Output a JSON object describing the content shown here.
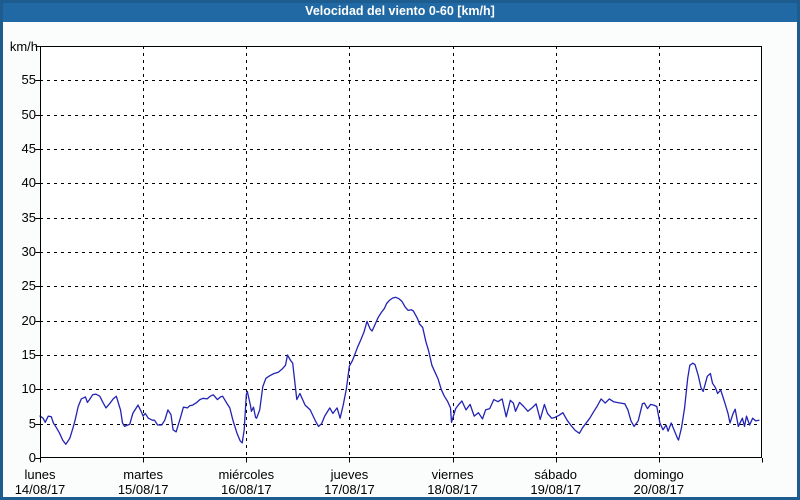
{
  "title": "Velocidad del viento 0-60 [km/h]",
  "colors": {
    "title_bar_bg": "#2069a4",
    "title_text": "#ffffff",
    "outer_border": "#1d5c8e",
    "page_bg": "#fbfcfc",
    "plot_bg": "#ffffff",
    "grid": "#000000",
    "line": "#2323b4",
    "text": "#000000"
  },
  "y_axis": {
    "unit_label": "km/h",
    "min": 0,
    "max": 60,
    "tick_step": 5,
    "tick_labels": [
      "0",
      "5",
      "10",
      "15",
      "20",
      "25",
      "30",
      "35",
      "40",
      "45",
      "50",
      "55"
    ]
  },
  "x_axis": {
    "days": [
      {
        "name": "lunes",
        "date": "14/08/17"
      },
      {
        "name": "martes",
        "date": "15/08/17"
      },
      {
        "name": "miércoles",
        "date": "16/08/17"
      },
      {
        "name": "jueves",
        "date": "17/08/17"
      },
      {
        "name": "viernes",
        "date": "18/08/17"
      },
      {
        "name": "sábado",
        "date": "19/08/17"
      },
      {
        "name": "domingo",
        "date": "20/08/17"
      }
    ]
  },
  "chart_data": {
    "type": "line",
    "title": "Velocidad del viento 0-60 [km/h]",
    "ylabel": "km/h",
    "ylim": [
      0,
      60
    ],
    "grid": true,
    "legend": false,
    "x_unit": "days since lunes 14/08/17 00:00 (0 to 7)",
    "x_tick_days": [
      "lunes 14/08/17",
      "martes 15/08/17",
      "miércoles 16/08/17",
      "jueves 17/08/17",
      "viernes 18/08/17",
      "sábado 19/08/17",
      "domingo 20/08/17"
    ],
    "series": [
      {
        "name": "Velocidad del viento",
        "color": "#2323b4",
        "points": [
          [
            0.0,
            6.1
          ],
          [
            0.03,
            5.8
          ],
          [
            0.05,
            5.2
          ],
          [
            0.08,
            6.1
          ],
          [
            0.11,
            6.0
          ],
          [
            0.13,
            5.1
          ],
          [
            0.16,
            4.4
          ],
          [
            0.19,
            3.6
          ],
          [
            0.22,
            2.6
          ],
          [
            0.25,
            2.0
          ],
          [
            0.29,
            2.9
          ],
          [
            0.32,
            4.4
          ],
          [
            0.34,
            5.5
          ],
          [
            0.37,
            7.5
          ],
          [
            0.4,
            8.6
          ],
          [
            0.44,
            8.9
          ],
          [
            0.46,
            8.1
          ],
          [
            0.48,
            8.5
          ],
          [
            0.51,
            9.2
          ],
          [
            0.54,
            9.3
          ],
          [
            0.58,
            9.0
          ],
          [
            0.61,
            8.1
          ],
          [
            0.64,
            7.3
          ],
          [
            0.68,
            8.0
          ],
          [
            0.71,
            8.6
          ],
          [
            0.74,
            9.0
          ],
          [
            0.78,
            7.0
          ],
          [
            0.8,
            5.1
          ],
          [
            0.82,
            4.6
          ],
          [
            0.85,
            4.8
          ],
          [
            0.87,
            4.9
          ],
          [
            0.9,
            6.5
          ],
          [
            0.95,
            7.7
          ],
          [
            0.98,
            6.8
          ],
          [
            1.0,
            6.1
          ],
          [
            1.02,
            6.5
          ],
          [
            1.05,
            5.8
          ],
          [
            1.09,
            5.5
          ],
          [
            1.11,
            5.5
          ],
          [
            1.14,
            4.8
          ],
          [
            1.18,
            4.8
          ],
          [
            1.21,
            5.5
          ],
          [
            1.24,
            7.0
          ],
          [
            1.27,
            6.3
          ],
          [
            1.29,
            4.1
          ],
          [
            1.32,
            3.8
          ],
          [
            1.36,
            5.8
          ],
          [
            1.39,
            7.4
          ],
          [
            1.43,
            7.3
          ],
          [
            1.45,
            7.6
          ],
          [
            1.48,
            7.7
          ],
          [
            1.52,
            8.1
          ],
          [
            1.55,
            8.5
          ],
          [
            1.58,
            8.7
          ],
          [
            1.62,
            8.6
          ],
          [
            1.65,
            9.0
          ],
          [
            1.68,
            9.2
          ],
          [
            1.72,
            8.5
          ],
          [
            1.75,
            8.9
          ],
          [
            1.77,
            9.0
          ],
          [
            1.81,
            8.0
          ],
          [
            1.84,
            7.3
          ],
          [
            1.87,
            5.5
          ],
          [
            1.91,
            3.6
          ],
          [
            1.94,
            2.5
          ],
          [
            1.96,
            2.2
          ],
          [
            1.98,
            4.1
          ],
          [
            2.0,
            9.2
          ],
          [
            2.01,
            9.7
          ],
          [
            2.04,
            7.7
          ],
          [
            2.05,
            6.8
          ],
          [
            2.07,
            7.4
          ],
          [
            2.09,
            5.9
          ],
          [
            2.1,
            5.8
          ],
          [
            2.13,
            7.0
          ],
          [
            2.16,
            10.4
          ],
          [
            2.19,
            11.6
          ],
          [
            2.23,
            12.0
          ],
          [
            2.27,
            12.3
          ],
          [
            2.31,
            12.5
          ],
          [
            2.35,
            13.0
          ],
          [
            2.38,
            13.5
          ],
          [
            2.4,
            15.0
          ],
          [
            2.43,
            14.2
          ],
          [
            2.45,
            13.8
          ],
          [
            2.49,
            8.5
          ],
          [
            2.52,
            9.4
          ],
          [
            2.57,
            7.7
          ],
          [
            2.62,
            7.0
          ],
          [
            2.67,
            5.4
          ],
          [
            2.7,
            4.6
          ],
          [
            2.73,
            5.0
          ],
          [
            2.76,
            6.1
          ],
          [
            2.81,
            7.3
          ],
          [
            2.84,
            6.5
          ],
          [
            2.88,
            7.3
          ],
          [
            2.91,
            5.8
          ],
          [
            2.94,
            7.7
          ],
          [
            2.97,
            10.0
          ],
          [
            3.0,
            13.4
          ],
          [
            3.03,
            14.2
          ],
          [
            3.05,
            15.0
          ],
          [
            3.08,
            16.2
          ],
          [
            3.11,
            17.2
          ],
          [
            3.14,
            18.3
          ],
          [
            3.17,
            19.9
          ],
          [
            3.2,
            18.8
          ],
          [
            3.22,
            18.5
          ],
          [
            3.25,
            19.5
          ],
          [
            3.28,
            20.5
          ],
          [
            3.31,
            21.2
          ],
          [
            3.34,
            21.8
          ],
          [
            3.36,
            22.5
          ],
          [
            3.39,
            23.0
          ],
          [
            3.42,
            23.3
          ],
          [
            3.45,
            23.4
          ],
          [
            3.48,
            23.2
          ],
          [
            3.51,
            22.8
          ],
          [
            3.54,
            22.0
          ],
          [
            3.57,
            21.5
          ],
          [
            3.6,
            21.6
          ],
          [
            3.62,
            21.4
          ],
          [
            3.66,
            20.3
          ],
          [
            3.68,
            19.5
          ],
          [
            3.71,
            19.0
          ],
          [
            3.74,
            17.0
          ],
          [
            3.77,
            15.5
          ],
          [
            3.8,
            13.5
          ],
          [
            3.83,
            12.5
          ],
          [
            3.86,
            11.5
          ],
          [
            3.89,
            10.0
          ],
          [
            3.92,
            9.0
          ],
          [
            3.95,
            8.3
          ],
          [
            3.98,
            7.3
          ],
          [
            3.99,
            5.2
          ],
          [
            4.03,
            7.2
          ],
          [
            4.06,
            7.8
          ],
          [
            4.09,
            8.3
          ],
          [
            4.13,
            7.0
          ],
          [
            4.17,
            7.8
          ],
          [
            4.21,
            6.1
          ],
          [
            4.25,
            6.6
          ],
          [
            4.29,
            5.7
          ],
          [
            4.32,
            7.0
          ],
          [
            4.36,
            7.2
          ],
          [
            4.4,
            8.5
          ],
          [
            4.44,
            8.2
          ],
          [
            4.48,
            8.6
          ],
          [
            4.52,
            6.0
          ],
          [
            4.56,
            8.4
          ],
          [
            4.59,
            8.0
          ],
          [
            4.61,
            6.8
          ],
          [
            4.65,
            8.1
          ],
          [
            4.69,
            7.5
          ],
          [
            4.73,
            6.8
          ],
          [
            4.77,
            7.3
          ],
          [
            4.81,
            7.9
          ],
          [
            4.85,
            5.6
          ],
          [
            4.89,
            7.8
          ],
          [
            4.92,
            6.5
          ],
          [
            4.96,
            5.8
          ],
          [
            4.99,
            5.9
          ],
          [
            5.03,
            6.2
          ],
          [
            5.07,
            6.6
          ],
          [
            5.11,
            5.5
          ],
          [
            5.15,
            4.7
          ],
          [
            5.19,
            4.0
          ],
          [
            5.23,
            3.6
          ],
          [
            5.26,
            4.4
          ],
          [
            5.3,
            5.2
          ],
          [
            5.33,
            5.8
          ],
          [
            5.37,
            6.8
          ],
          [
            5.4,
            7.5
          ],
          [
            5.44,
            8.6
          ],
          [
            5.48,
            8.0
          ],
          [
            5.52,
            8.6
          ],
          [
            5.56,
            8.2
          ],
          [
            5.59,
            8.1
          ],
          [
            5.63,
            8.0
          ],
          [
            5.67,
            7.9
          ],
          [
            5.7,
            7.0
          ],
          [
            5.73,
            5.4
          ],
          [
            5.76,
            4.6
          ],
          [
            5.8,
            5.4
          ],
          [
            5.84,
            7.9
          ],
          [
            5.86,
            8.0
          ],
          [
            5.89,
            7.2
          ],
          [
            5.92,
            7.8
          ],
          [
            5.95,
            7.7
          ],
          [
            5.98,
            7.5
          ],
          [
            6.01,
            5.1
          ],
          [
            6.04,
            4.1
          ],
          [
            6.07,
            4.8
          ],
          [
            6.09,
            3.9
          ],
          [
            6.12,
            5.1
          ],
          [
            6.15,
            4.0
          ],
          [
            6.18,
            2.9
          ],
          [
            6.19,
            2.6
          ],
          [
            6.22,
            4.4
          ],
          [
            6.25,
            7.3
          ],
          [
            6.28,
            11.6
          ],
          [
            6.3,
            13.5
          ],
          [
            6.33,
            13.8
          ],
          [
            6.35,
            13.6
          ],
          [
            6.38,
            12.1
          ],
          [
            6.41,
            10.2
          ],
          [
            6.43,
            9.7
          ],
          [
            6.47,
            11.9
          ],
          [
            6.5,
            12.3
          ],
          [
            6.52,
            10.9
          ],
          [
            6.55,
            10.2
          ],
          [
            6.57,
            9.4
          ],
          [
            6.6,
            9.9
          ],
          [
            6.64,
            8.0
          ],
          [
            6.67,
            6.5
          ],
          [
            6.69,
            5.1
          ],
          [
            6.72,
            6.5
          ],
          [
            6.74,
            7.1
          ],
          [
            6.77,
            4.6
          ],
          [
            6.81,
            5.8
          ],
          [
            6.83,
            4.6
          ],
          [
            6.85,
            6.1
          ],
          [
            6.88,
            4.8
          ],
          [
            6.91,
            5.8
          ],
          [
            6.94,
            5.4
          ],
          [
            6.97,
            5.5
          ]
        ]
      }
    ]
  }
}
